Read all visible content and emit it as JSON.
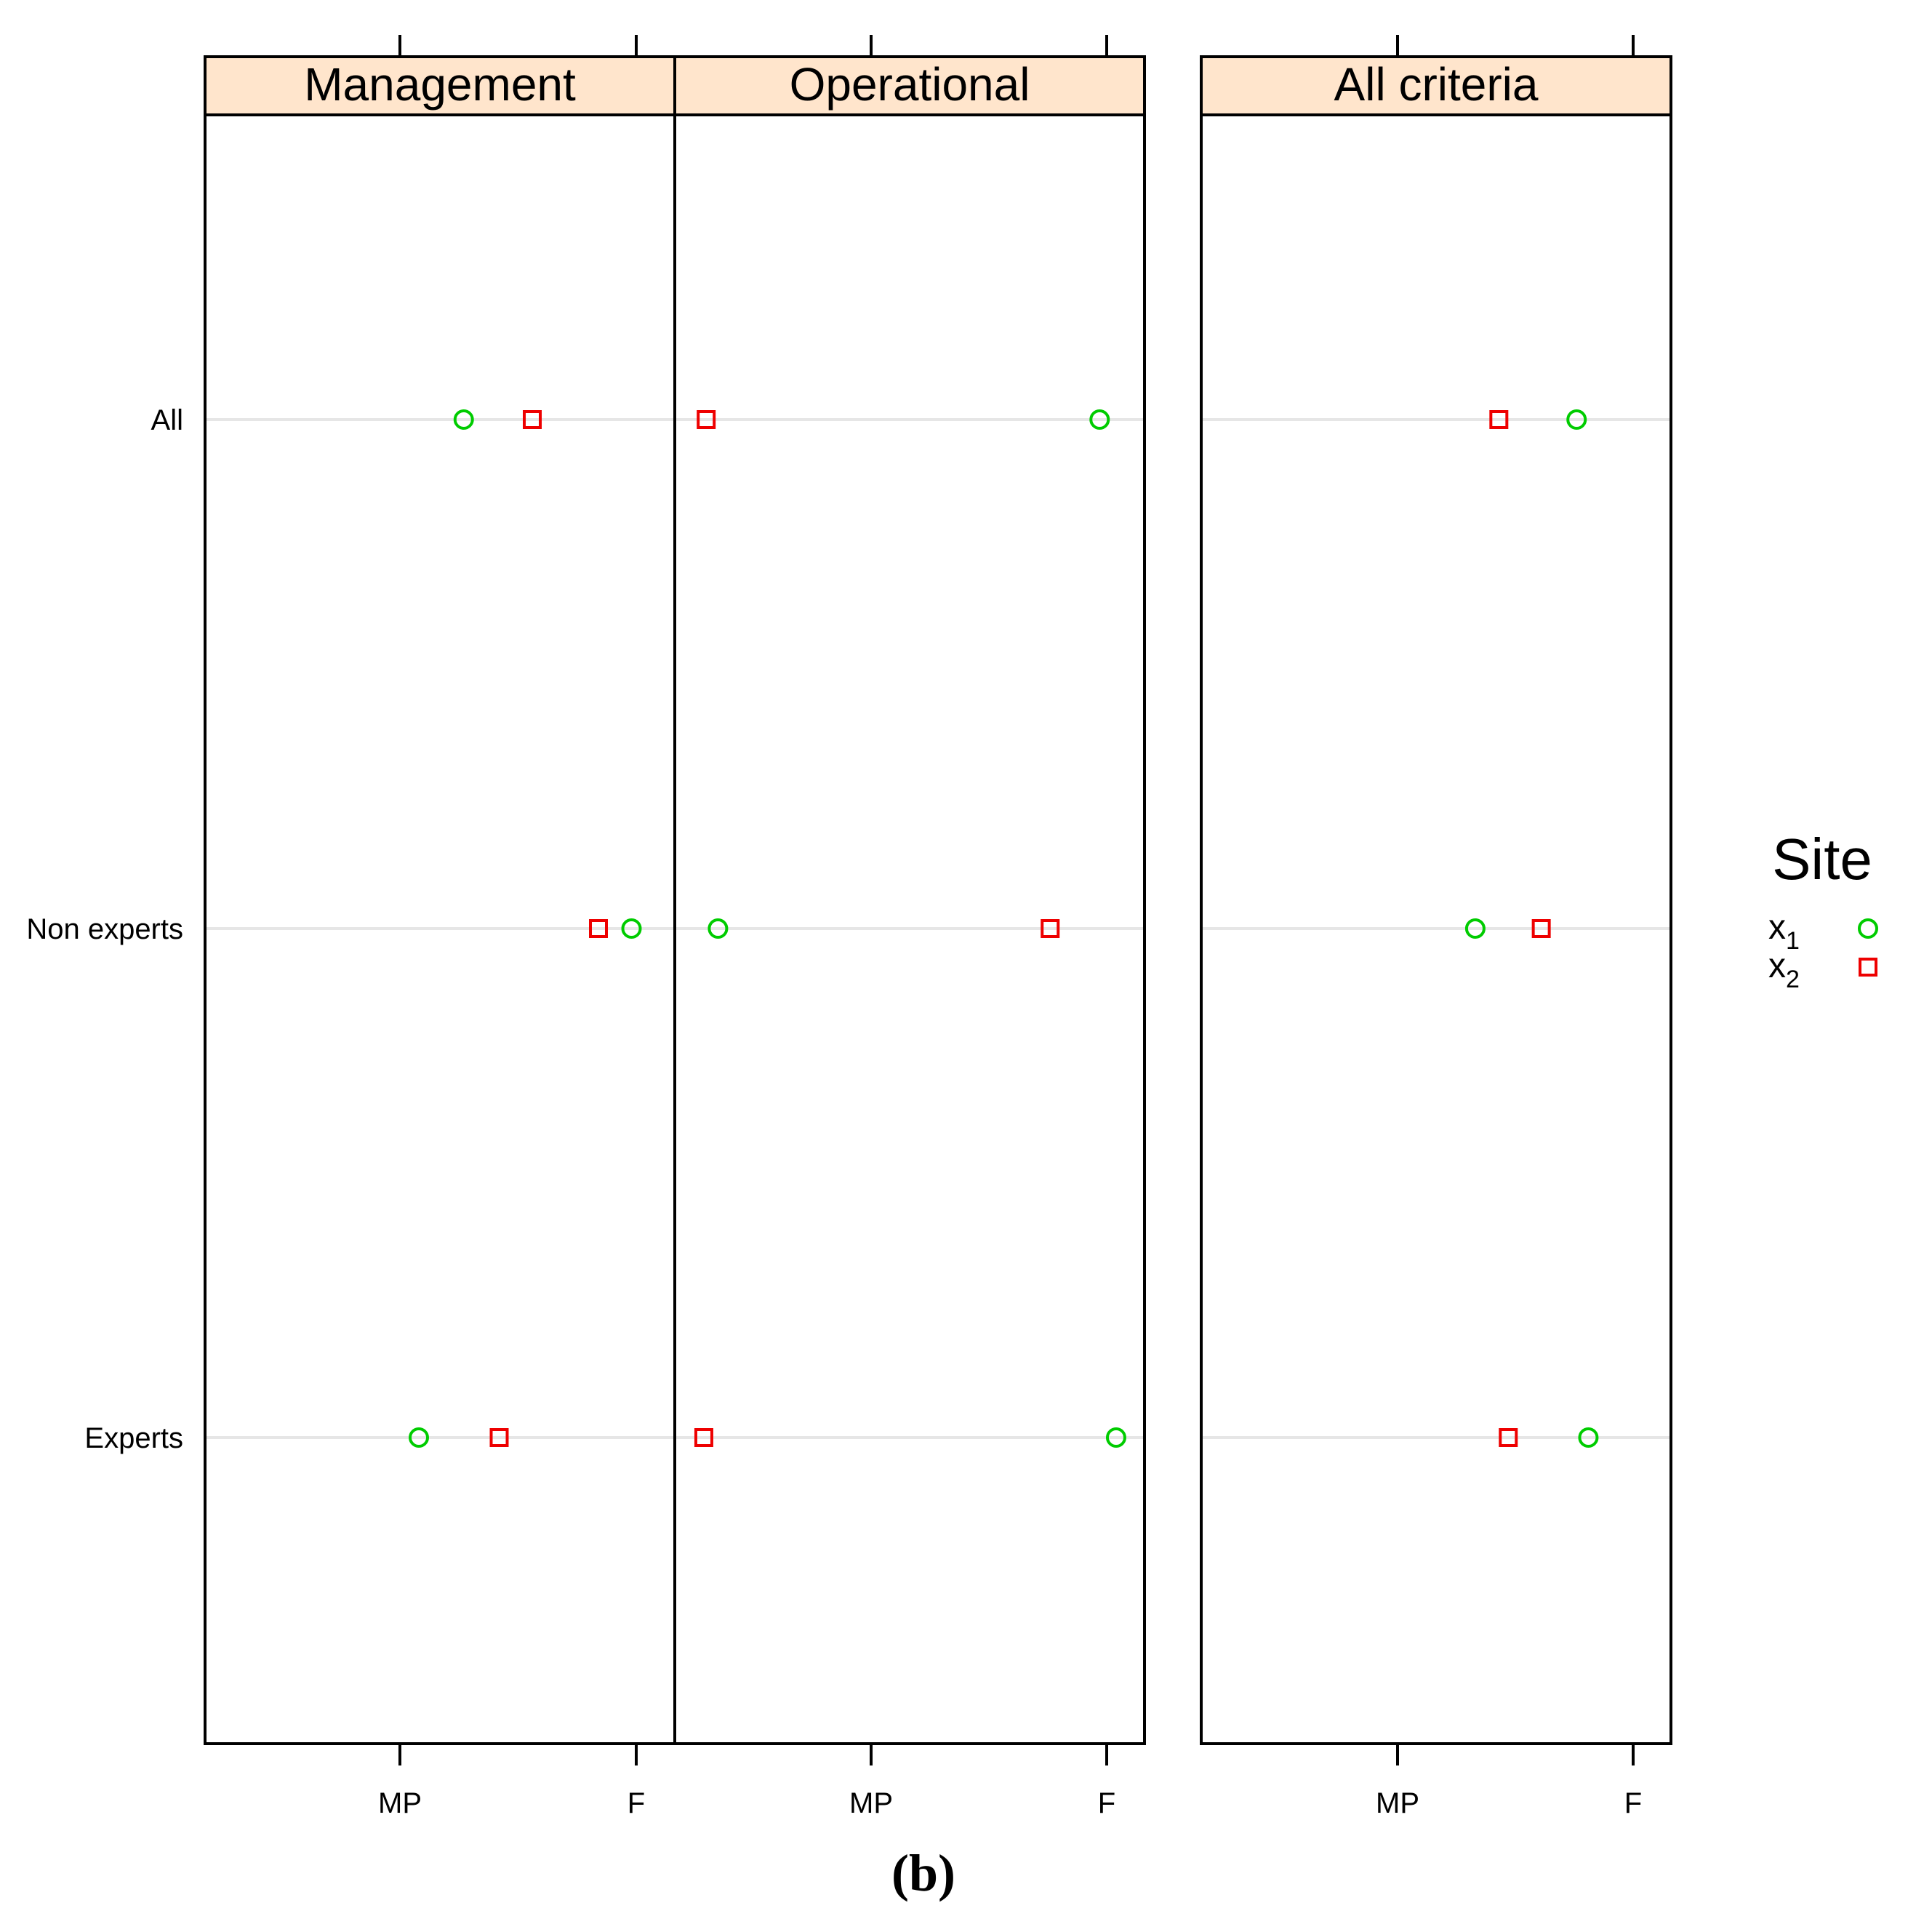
{
  "chart_data": {
    "type": "scatter",
    "panels": [
      {
        "title": "Management",
        "x_ticks": [
          "MP",
          "F"
        ],
        "points": [
          {
            "category": "All",
            "series": "x1",
            "x": 0.27
          },
          {
            "category": "All",
            "series": "x2",
            "x": 0.56
          },
          {
            "category": "Non experts",
            "series": "x2",
            "x": 0.84
          },
          {
            "category": "Non experts",
            "series": "x1",
            "x": 0.98
          },
          {
            "category": "Experts",
            "series": "x1",
            "x": 0.08
          },
          {
            "category": "Experts",
            "series": "x2",
            "x": 0.42
          }
        ]
      },
      {
        "title": "Operational",
        "x_ticks": [
          "MP",
          "F"
        ],
        "points": [
          {
            "category": "All",
            "series": "x2",
            "x": -0.7
          },
          {
            "category": "All",
            "series": "x1",
            "x": 0.97
          },
          {
            "category": "Non experts",
            "series": "x1",
            "x": -0.65
          },
          {
            "category": "Non experts",
            "series": "x2",
            "x": 0.76
          },
          {
            "category": "Experts",
            "series": "x2",
            "x": -0.71
          },
          {
            "category": "Experts",
            "series": "x1",
            "x": 1.04
          }
        ]
      },
      {
        "title": "All criteria",
        "x_ticks": [
          "MP",
          "F"
        ],
        "points": [
          {
            "category": "All",
            "series": "x2",
            "x": 0.43
          },
          {
            "category": "All",
            "series": "x1",
            "x": 0.76
          },
          {
            "category": "Non experts",
            "series": "x1",
            "x": 0.33
          },
          {
            "category": "Non experts",
            "series": "x2",
            "x": 0.61
          },
          {
            "category": "Experts",
            "series": "x2",
            "x": 0.47
          },
          {
            "category": "Experts",
            "series": "x1",
            "x": 0.81
          }
        ]
      }
    ],
    "categories": [
      "All",
      "Non experts",
      "Experts"
    ],
    "x_range": [
      -0.83,
      1.13
    ],
    "grid": true,
    "legend": {
      "title": "Site",
      "position": "right",
      "entries": [
        {
          "series": "x1",
          "label": "x",
          "sub": "1",
          "marker": "circle",
          "color": "#00cc00"
        },
        {
          "series": "x2",
          "label": "x",
          "sub": "2",
          "marker": "square",
          "color": "#ee0000"
        }
      ]
    },
    "caption": "(b)",
    "colors": {
      "strip": "#ffe5cc",
      "grid": "#e6e6e6",
      "x1": "#00cc00",
      "x2": "#ee0000"
    }
  }
}
